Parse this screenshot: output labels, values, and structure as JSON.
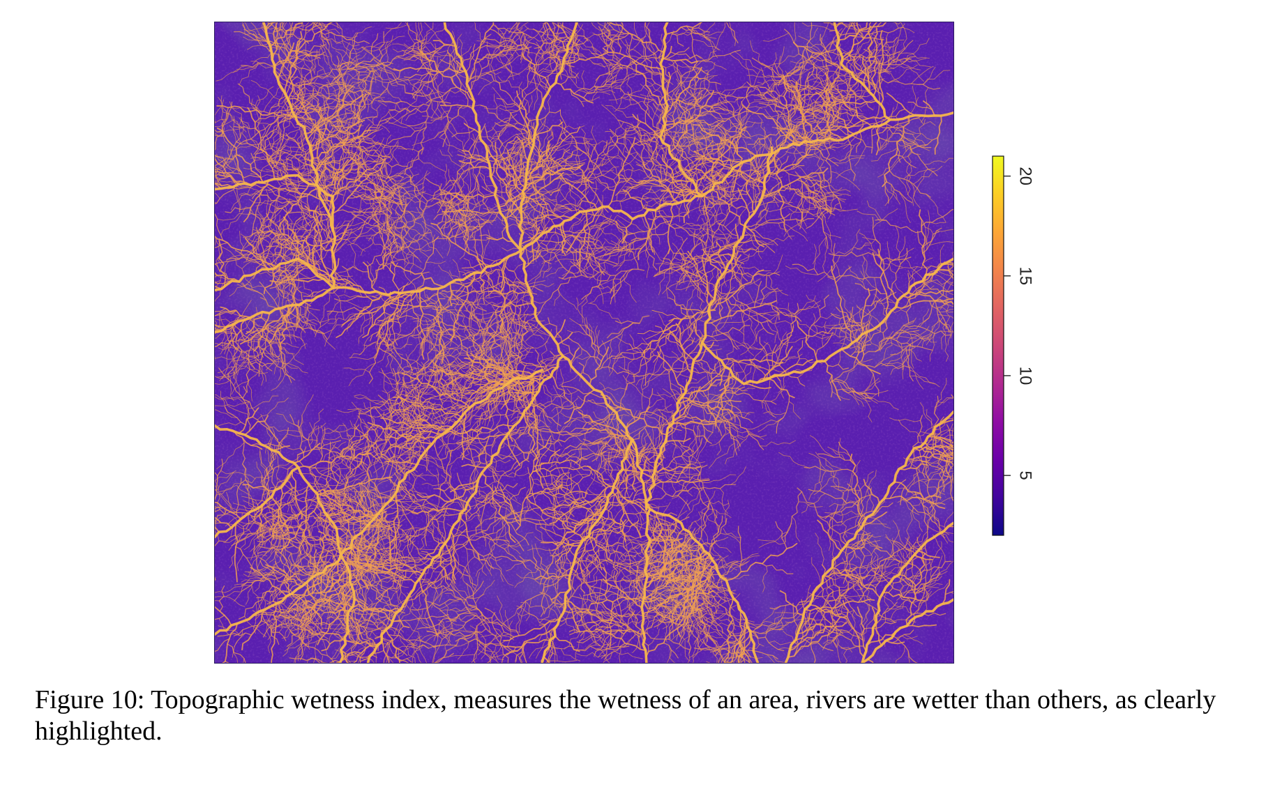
{
  "figure": {
    "caption": "Figure 10: Topographic wetness index, measures the wetness of an area, rivers are wetter than others, as clearly highlighted."
  },
  "map": {
    "subject": "Topographic wetness index raster",
    "background_color": "#5a1fb0",
    "channel_color": "#f0a052",
    "main_river_color": "#f6b64c"
  },
  "legend": {
    "min": 2,
    "max": 21,
    "ticks": [
      {
        "value": 20,
        "label": "20"
      },
      {
        "value": 15,
        "label": "15"
      },
      {
        "value": 10,
        "label": "10"
      },
      {
        "value": 5,
        "label": "5"
      }
    ],
    "colors": [
      "#0d0887",
      "#41049d",
      "#6a00a8",
      "#8f0da4",
      "#b12a90",
      "#cc4778",
      "#e16462",
      "#f2844b",
      "#fca636",
      "#fcce25",
      "#f0f921"
    ]
  }
}
